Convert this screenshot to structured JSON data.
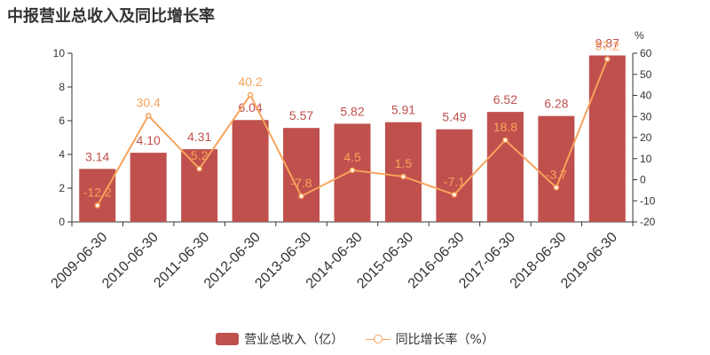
{
  "chart_data": {
    "type": "bar",
    "title": "中报营业总收入及同比增长率",
    "categories": [
      "2009-06-30",
      "2010-06-30",
      "2011-06-30",
      "2012-06-30",
      "2013-06-30",
      "2014-06-30",
      "2015-06-30",
      "2016-06-30",
      "2017-06-30",
      "2018-06-30",
      "2019-06-30"
    ],
    "series": [
      {
        "name": "营业总收入（亿）",
        "type": "bar",
        "axis": "left",
        "color": "#c0504d",
        "values": [
          3.14,
          4.1,
          4.31,
          6.04,
          5.57,
          5.82,
          5.91,
          5.49,
          6.52,
          6.28,
          9.87
        ],
        "labels": [
          "3.14",
          "4.10",
          "4.31",
          "6.04",
          "5.57",
          "5.82",
          "5.91",
          "5.49",
          "6.52",
          "6.28",
          "9.87"
        ]
      },
      {
        "name": "同比增长率（%）",
        "type": "line",
        "axis": "right",
        "color": "#f7a35c",
        "values": [
          -12.2,
          30.4,
          5.2,
          40.2,
          -7.8,
          4.5,
          1.5,
          -7.1,
          18.8,
          -3.7,
          57.2
        ],
        "labels": [
          "-12.2",
          "30.4",
          "5.2",
          "40.2",
          "-7.8",
          "4.5",
          "1.5",
          "-7.1",
          "18.8",
          "-3.7",
          "57.2"
        ]
      }
    ],
    "y_left": {
      "min": 0,
      "max": 10,
      "ticks": [
        0,
        2,
        4,
        6,
        8,
        10
      ]
    },
    "y_right": {
      "min": -20,
      "max": 60,
      "ticks": [
        -20,
        -10,
        0,
        10,
        20,
        30,
        40,
        50,
        60
      ],
      "unit": "%"
    },
    "grid": false,
    "legend_position": "bottom"
  }
}
